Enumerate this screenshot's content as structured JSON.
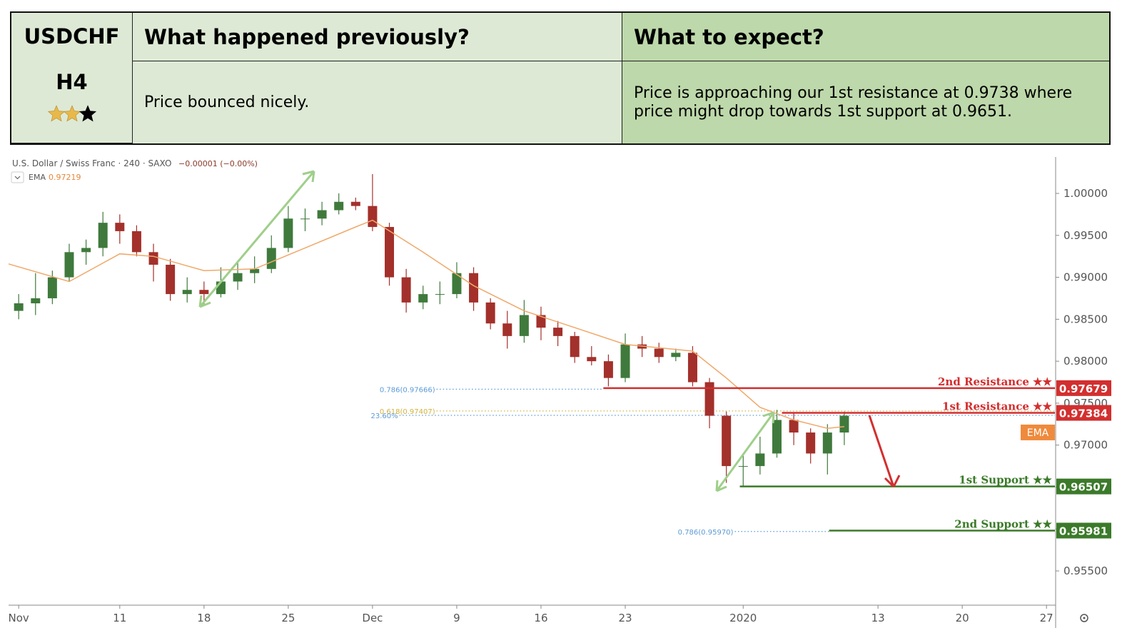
{
  "header": {
    "symbol": "USDCHF",
    "timeframe": "H4",
    "stars": 2,
    "stars_max": 3,
    "previous_title": "What happened previously?",
    "previous_text": "Price bounced nicely.",
    "expect_title": "What to expect?",
    "expect_text": "Price is approaching our 1st resistance at 0.9738 where price might drop towards 1st support at 0.9651."
  },
  "chart_data": {
    "type": "candlestick",
    "title": "U.S. Dollar / Swiss Franc · 240 · SAXO",
    "change": "−0.00001 (−0.00%)",
    "up_color": "#3f7a3c",
    "down_color": "#a3302b",
    "x": [
      0,
      1,
      2,
      3,
      4,
      5,
      6,
      7,
      8,
      9,
      10,
      11,
      12,
      13,
      14,
      15,
      16,
      17,
      18,
      19,
      20,
      21,
      22,
      23,
      24,
      25,
      26,
      27,
      28,
      29,
      30,
      31,
      32,
      33,
      34,
      35,
      36,
      37,
      38,
      39,
      40,
      41,
      42,
      43,
      44,
      45,
      46,
      47,
      48,
      49
    ],
    "open": [
      0.986,
      0.9869,
      0.9875,
      0.99,
      0.993,
      0.9935,
      0.9965,
      0.9955,
      0.993,
      0.9915,
      0.988,
      0.9885,
      0.988,
      0.9895,
      0.9905,
      0.991,
      0.9935,
      0.997,
      0.997,
      0.998,
      0.999,
      0.9985,
      0.996,
      0.99,
      0.987,
      0.988,
      0.988,
      0.9905,
      0.987,
      0.9845,
      0.983,
      0.9855,
      0.984,
      0.983,
      0.9805,
      0.98,
      0.978,
      0.982,
      0.9815,
      0.9805,
      0.981,
      0.9775,
      0.9735,
      0.9675,
      0.9675,
      0.969,
      0.973,
      0.9715,
      0.969,
      0.9715
    ],
    "high": [
      0.988,
      0.9905,
      0.9908,
      0.994,
      0.9945,
      0.9978,
      0.9975,
      0.9962,
      0.994,
      0.9922,
      0.99,
      0.9895,
      0.9912,
      0.992,
      0.9925,
      0.995,
      0.9985,
      0.9982,
      0.999,
      1.0,
      0.9995,
      1.0023,
      0.9965,
      0.991,
      0.989,
      0.9895,
      0.9918,
      0.9912,
      0.9875,
      0.986,
      0.9873,
      0.9865,
      0.9848,
      0.9835,
      0.9818,
      0.9808,
      0.9833,
      0.983,
      0.9822,
      0.9815,
      0.9818,
      0.978,
      0.974,
      0.969,
      0.971,
      0.9742,
      0.9738,
      0.972,
      0.9725,
      0.974
    ],
    "low": [
      0.985,
      0.9855,
      0.9868,
      0.9895,
      0.9915,
      0.9925,
      0.994,
      0.9925,
      0.9895,
      0.9872,
      0.987,
      0.9868,
      0.9876,
      0.9885,
      0.9893,
      0.9905,
      0.993,
      0.9955,
      0.9962,
      0.9975,
      0.998,
      0.9955,
      0.989,
      0.9858,
      0.9862,
      0.9868,
      0.9875,
      0.986,
      0.9838,
      0.9815,
      0.9822,
      0.9825,
      0.9818,
      0.9798,
      0.9795,
      0.977,
      0.9775,
      0.9805,
      0.9798,
      0.98,
      0.977,
      0.972,
      0.9655,
      0.965,
      0.9665,
      0.9685,
      0.97,
      0.9678,
      0.9665,
      0.97
    ],
    "close": [
      0.9869,
      0.9875,
      0.99,
      0.993,
      0.9935,
      0.9965,
      0.9955,
      0.993,
      0.9915,
      0.988,
      0.9885,
      0.988,
      0.9895,
      0.9905,
      0.991,
      0.9935,
      0.997,
      0.997,
      0.998,
      0.999,
      0.9985,
      0.996,
      0.99,
      0.987,
      0.988,
      0.988,
      0.9905,
      0.987,
      0.9845,
      0.983,
      0.9855,
      0.984,
      0.983,
      0.9805,
      0.98,
      0.978,
      0.982,
      0.9815,
      0.9805,
      0.981,
      0.9775,
      0.9735,
      0.9675,
      0.9675,
      0.969,
      0.973,
      0.9715,
      0.969,
      0.9715,
      0.9735
    ],
    "ema": {
      "name": "EMA",
      "color": "#f0a86a",
      "last": 0.97219,
      "x": [
        -0.6,
        3,
        6,
        8,
        11,
        14,
        17,
        20,
        21,
        24,
        27,
        30,
        33,
        36,
        40,
        42,
        44,
        46,
        48,
        49
      ],
      "values": [
        0.9916,
        0.9895,
        0.9928,
        0.9925,
        0.9908,
        0.991,
        0.9935,
        0.996,
        0.9968,
        0.993,
        0.989,
        0.986,
        0.984,
        0.982,
        0.9812,
        0.978,
        0.9745,
        0.973,
        0.972,
        0.9722
      ]
    },
    "levels": [
      {
        "name": "2nd Resistance ★★",
        "value": 0.97679,
        "x_start": 34.7,
        "color": "#d32f2f"
      },
      {
        "name": "1st Resistance ★★",
        "value": 0.97384,
        "x_start": 45.3,
        "color": "#d32f2f"
      },
      {
        "name": "1st Support ★★",
        "value": 0.96507,
        "x_start": 42.8,
        "color": "#3b7a2a"
      },
      {
        "name": "2nd Support ★★",
        "value": 0.95981,
        "x_start": 48.1,
        "color": "#3b7a2a"
      }
    ],
    "fibs": [
      {
        "label": "0.786(0.97666)",
        "value": 0.97666,
        "x_start": 24.8,
        "x_end": 34.7,
        "color": "#5b9bd5"
      },
      {
        "label": "0.618(0.97407)",
        "value": 0.97407,
        "x_start": 24.8,
        "x_end": 61.5,
        "color": "#d4b13c"
      },
      {
        "label": "23.60%",
        "value": 0.97355,
        "x_start": 22.6,
        "x_end": 61.5,
        "color": "#5b9bd5"
      },
      {
        "label": "0.786(0.95970)",
        "value": 0.9597,
        "x_start": 42.5,
        "x_end": 48.1,
        "color": "#5b9bd5"
      }
    ],
    "xlim": [
      -0.6,
      61.5
    ],
    "xticks": [
      {
        "value": 0,
        "label": "Nov"
      },
      {
        "value": 6,
        "label": "11"
      },
      {
        "value": 11,
        "label": "18"
      },
      {
        "value": 16,
        "label": "25"
      },
      {
        "value": 21,
        "label": "Dec"
      },
      {
        "value": 26,
        "label": "9"
      },
      {
        "value": 31,
        "label": "16"
      },
      {
        "value": 36,
        "label": "23"
      },
      {
        "value": 43,
        "label": "2020"
      },
      {
        "value": 51,
        "label": "13"
      },
      {
        "value": 56,
        "label": "20"
      },
      {
        "value": 61,
        "label": "27"
      }
    ],
    "ylim": [
      0.95092,
      1.00434
    ],
    "yticks": [
      {
        "value": 0.955,
        "label": "0.95500"
      },
      {
        "value": 0.96,
        "label": "0.96000"
      },
      {
        "value": 0.965,
        "label": "0.96500"
      },
      {
        "value": 0.97,
        "label": "0.97000"
      },
      {
        "value": 0.975,
        "label": "0.97500"
      },
      {
        "value": 0.98,
        "label": "0.98000"
      },
      {
        "value": 0.985,
        "label": "0.98500"
      },
      {
        "value": 0.99,
        "label": "0.99000"
      },
      {
        "value": 0.995,
        "label": "0.99500"
      },
      {
        "value": 1.0,
        "label": "1.00000"
      }
    ]
  }
}
